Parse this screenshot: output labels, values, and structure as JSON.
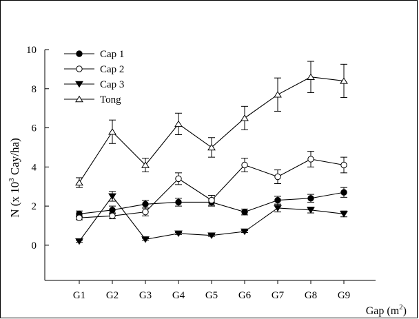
{
  "chart_data": {
    "type": "line",
    "categories": [
      "G1",
      "G2",
      "G3",
      "G4",
      "G5",
      "G6",
      "G7",
      "G8",
      "G9"
    ],
    "xlabel_base": "Gap (m",
    "xlabel_sup": "2",
    "xlabel_tail": ")",
    "ylabel_pre": "N (x 10",
    "ylabel_sup": "3",
    "ylabel_post": " Cay/ha)",
    "ylim": [
      -1.8,
      10
    ],
    "yticks": [
      0,
      2,
      4,
      6,
      8,
      10
    ],
    "grid": false,
    "legend_position": "top-left",
    "series": [
      {
        "name": "Cap 1",
        "marker": "filled-circle",
        "values": [
          1.6,
          1.8,
          2.1,
          2.2,
          2.2,
          1.7,
          2.3,
          2.4,
          2.7
        ],
        "errors": [
          0.15,
          0.2,
          0.2,
          0.2,
          0.2,
          0.15,
          0.2,
          0.2,
          0.25
        ]
      },
      {
        "name": "Cap 2",
        "marker": "open-circle",
        "values": [
          1.4,
          1.5,
          1.7,
          3.4,
          2.3,
          4.1,
          3.5,
          4.4,
          4.1
        ],
        "errors": [
          0.1,
          0.15,
          0.2,
          0.3,
          0.25,
          0.35,
          0.35,
          0.4,
          0.4
        ]
      },
      {
        "name": "Cap 3",
        "marker": "filled-triangle-down",
        "values": [
          0.2,
          2.5,
          0.3,
          0.6,
          0.5,
          0.7,
          1.9,
          1.8,
          1.6
        ],
        "errors": [
          0.05,
          0.25,
          0.05,
          0.05,
          0.05,
          0.05,
          0.2,
          0.15,
          0.15
        ]
      },
      {
        "name": "Tong",
        "marker": "open-triangle-up",
        "values": [
          3.2,
          5.8,
          4.1,
          6.2,
          5.0,
          6.5,
          7.7,
          8.6,
          8.4
        ],
        "errors": [
          0.25,
          0.6,
          0.35,
          0.55,
          0.5,
          0.6,
          0.85,
          0.8,
          0.85
        ]
      }
    ]
  }
}
